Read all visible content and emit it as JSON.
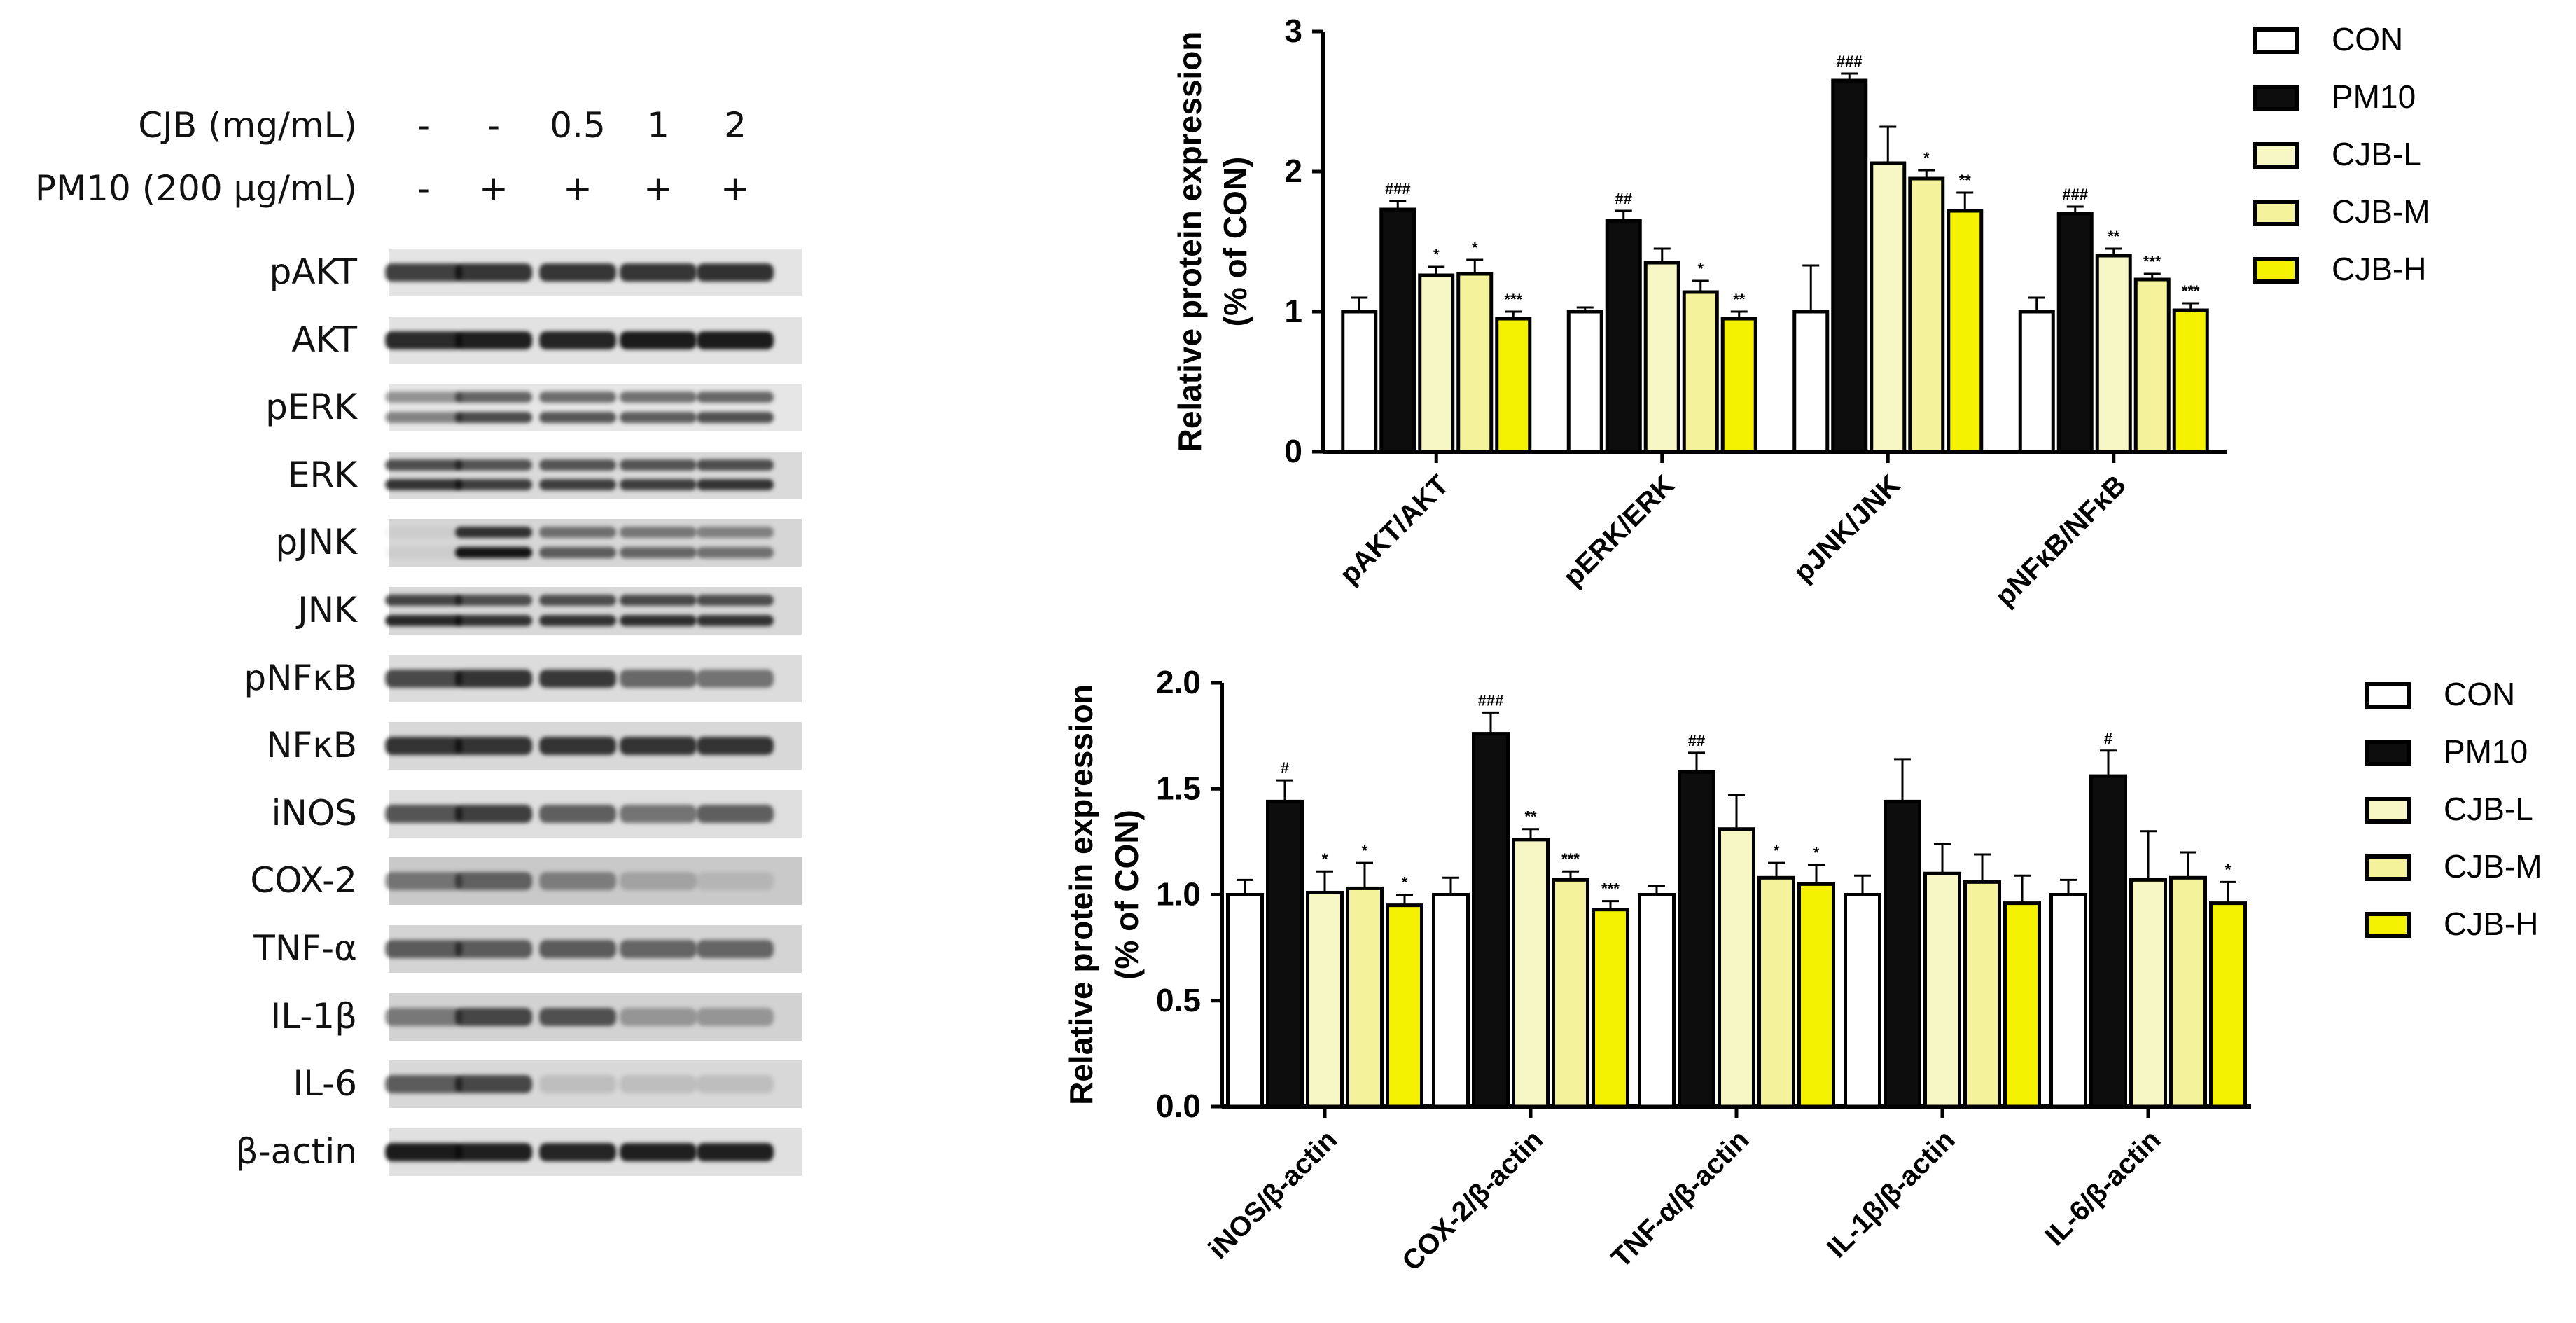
{
  "blot": {
    "treatments": [
      {
        "label": "CJB (mg/mL)",
        "values": [
          "-",
          "-",
          "0.5",
          "1",
          "2"
        ]
      },
      {
        "label": "PM10 (200 µg/mL)",
        "values": [
          "-",
          "+",
          "+",
          "+",
          "+"
        ]
      }
    ],
    "rows": [
      {
        "label": "pAKT",
        "intensity": [
          0.75,
          0.8,
          0.8,
          0.8,
          0.82
        ],
        "bands": 1,
        "bg": "#e4e4e4"
      },
      {
        "label": "AKT",
        "intensity": [
          0.85,
          0.9,
          0.88,
          0.92,
          0.92
        ],
        "bands": 1,
        "bg": "#e2e2e2"
      },
      {
        "label": "pERK",
        "intensity": [
          0.45,
          0.7,
          0.65,
          0.62,
          0.68
        ],
        "bands": 2,
        "bg": "#e6e6e6"
      },
      {
        "label": "ERK",
        "intensity": [
          0.8,
          0.75,
          0.75,
          0.75,
          0.8
        ],
        "bands": 2,
        "bg": "#dadada"
      },
      {
        "label": "pJNK",
        "intensity": [
          0.05,
          0.95,
          0.6,
          0.55,
          0.5
        ],
        "bands": 2,
        "bg": "#d6d6d6"
      },
      {
        "label": "JNK",
        "intensity": [
          0.85,
          0.8,
          0.8,
          0.82,
          0.8
        ],
        "bands": 2,
        "bg": "#d8d8d8"
      },
      {
        "label": "pNFκB",
        "intensity": [
          0.7,
          0.8,
          0.78,
          0.55,
          0.5
        ],
        "bands": 1,
        "bg": "#dcdcdc"
      },
      {
        "label": "NFκB",
        "intensity": [
          0.8,
          0.8,
          0.8,
          0.8,
          0.8
        ],
        "bands": 1,
        "bg": "#d8d8d8"
      },
      {
        "label": "iNOS",
        "intensity": [
          0.65,
          0.75,
          0.6,
          0.5,
          0.6
        ],
        "bands": 1,
        "bg": "#dedede"
      },
      {
        "label": "COX-2",
        "intensity": [
          0.45,
          0.55,
          0.4,
          0.2,
          0.1
        ],
        "bands": 1,
        "bg": "#c9c9c9"
      },
      {
        "label": "TNF-α",
        "intensity": [
          0.6,
          0.6,
          0.6,
          0.55,
          0.55
        ],
        "bands": 1,
        "bg": "#d4d4d4"
      },
      {
        "label": "IL-1β",
        "intensity": [
          0.45,
          0.7,
          0.65,
          0.3,
          0.3
        ],
        "bands": 1,
        "bg": "#d2d2d2"
      },
      {
        "label": "IL-6",
        "intensity": [
          0.6,
          0.7,
          0.12,
          0.12,
          0.12
        ],
        "bands": 1,
        "bg": "#d8d8d8"
      },
      {
        "label": "β-actin",
        "intensity": [
          0.92,
          0.9,
          0.88,
          0.9,
          0.9
        ],
        "bands": 1,
        "bg": "#e0e0e0"
      }
    ]
  },
  "colors": {
    "CON": "#ffffff",
    "PM10": "#0d0d0d",
    "CJB-L": "#f6f7c4",
    "CJB-M": "#f4f29a",
    "CJB-H": "#f4f200"
  },
  "chart_data": [
    {
      "type": "bar",
      "title": "",
      "ylabel_line1": "Relative protein expression",
      "ylabel_line2": "(% of CON)",
      "ylim": [
        0,
        3
      ],
      "yticks": [
        "0",
        "1",
        "2",
        "3"
      ],
      "categories": [
        "pAKT/AKT",
        "pERK/ERK",
        "pJNK/JNK",
        "pNFκB/NFκB"
      ],
      "legend": [
        "CON",
        "PM10",
        "CJB-L",
        "CJB-M",
        "CJB-H"
      ],
      "series": [
        {
          "name": "CON",
          "values": [
            1.0,
            1.0,
            1.0,
            1.0
          ],
          "errors": [
            0.1,
            0.03,
            0.33,
            0.1
          ],
          "sig": [
            "",
            "",
            "",
            ""
          ]
        },
        {
          "name": "PM10",
          "values": [
            1.73,
            1.65,
            2.65,
            1.7
          ],
          "errors": [
            0.06,
            0.07,
            0.05,
            0.05
          ],
          "sig": [
            "###",
            "##",
            "###",
            "###"
          ]
        },
        {
          "name": "CJB-L",
          "values": [
            1.26,
            1.35,
            2.06,
            1.4
          ],
          "errors": [
            0.06,
            0.1,
            0.26,
            0.05
          ],
          "sig": [
            "*",
            "",
            "",
            "**"
          ]
        },
        {
          "name": "CJB-M",
          "values": [
            1.27,
            1.14,
            1.95,
            1.23
          ],
          "errors": [
            0.1,
            0.08,
            0.06,
            0.04
          ],
          "sig": [
            "*",
            "*",
            "*",
            "***"
          ]
        },
        {
          "name": "CJB-H",
          "values": [
            0.95,
            0.95,
            1.72,
            1.01
          ],
          "errors": [
            0.05,
            0.05,
            0.13,
            0.05
          ],
          "sig": [
            "***",
            "**",
            "**",
            "***"
          ]
        }
      ]
    },
    {
      "type": "bar",
      "title": "",
      "ylabel_line1": "Relative protein expression",
      "ylabel_line2": "(% of CON)",
      "ylim": [
        0,
        2
      ],
      "yticks": [
        "0.0",
        "0.5",
        "1.0",
        "1.5",
        "2.0"
      ],
      "categories": [
        "iNOS/β-actin",
        "COX-2/β-actin",
        "TNF-α/β-actin",
        "IL-1β/β-actin",
        "IL-6/β-actin"
      ],
      "legend": [
        "CON",
        "PM10",
        "CJB-L",
        "CJB-M",
        "CJB-H"
      ],
      "series": [
        {
          "name": "CON",
          "values": [
            1.0,
            1.0,
            1.0,
            1.0,
            1.0
          ],
          "errors": [
            0.07,
            0.08,
            0.04,
            0.09,
            0.07
          ],
          "sig": [
            "",
            "",
            "",
            "",
            ""
          ]
        },
        {
          "name": "PM10",
          "values": [
            1.44,
            1.76,
            1.58,
            1.44,
            1.56
          ],
          "errors": [
            0.1,
            0.1,
            0.09,
            0.2,
            0.12
          ],
          "sig": [
            "#",
            "###",
            "##",
            "",
            "#"
          ]
        },
        {
          "name": "CJB-L",
          "values": [
            1.01,
            1.26,
            1.31,
            1.1,
            1.07
          ],
          "errors": [
            0.1,
            0.05,
            0.16,
            0.14,
            0.23
          ],
          "sig": [
            "*",
            "**",
            "",
            "",
            ""
          ]
        },
        {
          "name": "CJB-M",
          "values": [
            1.03,
            1.07,
            1.08,
            1.06,
            1.08
          ],
          "errors": [
            0.12,
            0.04,
            0.07,
            0.13,
            0.12
          ],
          "sig": [
            "*",
            "***",
            "*",
            "",
            ""
          ]
        },
        {
          "name": "CJB-H",
          "values": [
            0.95,
            0.93,
            1.05,
            0.96,
            0.96
          ],
          "errors": [
            0.05,
            0.04,
            0.09,
            0.13,
            0.1
          ],
          "sig": [
            "*",
            "***",
            "*",
            "",
            "*"
          ]
        }
      ]
    }
  ]
}
